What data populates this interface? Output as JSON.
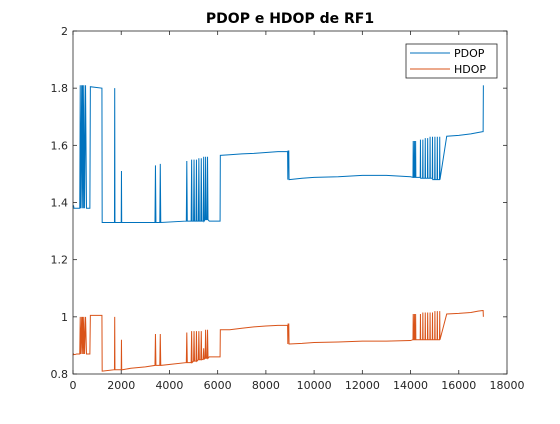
{
  "chart_data": {
    "type": "line",
    "title": "PDOP e HDOP de RF1",
    "xlabel": "",
    "ylabel": "",
    "xlim": [
      0,
      18000
    ],
    "ylim": [
      0.8,
      2
    ],
    "xticks": [
      0,
      2000,
      4000,
      6000,
      8000,
      10000,
      12000,
      14000,
      16000,
      18000
    ],
    "yticks": [
      0.8,
      1,
      1.2,
      1.4,
      1.6,
      1.8,
      2
    ],
    "xtick_labels": [
      "0",
      "2000",
      "4000",
      "6000",
      "8000",
      "10000",
      "12000",
      "14000",
      "16000",
      "18000"
    ],
    "ytick_labels": [
      "0.8",
      "1",
      "1.2",
      "1.4",
      "1.6",
      "1.8",
      "2"
    ],
    "grid": false,
    "legend_position": "top-right",
    "series": [
      {
        "name": "PDOP",
        "color": "#0072BD",
        "x": [
          0,
          20,
          40,
          80,
          150,
          220,
          280,
          300,
          320,
          360,
          380,
          400,
          430,
          450,
          480,
          520,
          560,
          600,
          660,
          700,
          720,
          1200,
          1210,
          1220,
          1720,
          1730,
          1740,
          1960,
          2000,
          2010,
          2020,
          2050,
          2400,
          3000,
          3400,
          3420,
          3440,
          3600,
          3620,
          3640,
          4700,
          4720,
          4740,
          4900,
          4920,
          4940,
          5000,
          5020,
          5040,
          5100,
          5120,
          5140,
          5200,
          5220,
          5240,
          5300,
          5320,
          5340,
          5400,
          5420,
          5440,
          5480,
          5500,
          5520,
          5560,
          5580,
          5600,
          5650,
          6100,
          6110,
          6500,
          7000,
          7500,
          8000,
          8500,
          8900,
          8910,
          8920,
          8950,
          8960,
          8970,
          9500,
          10000,
          11000,
          12000,
          13000,
          14000,
          14100,
          14110,
          14120,
          14150,
          14160,
          14170,
          14200,
          14210,
          14220,
          14400,
          14410,
          14420,
          14500,
          14510,
          14520,
          14600,
          14610,
          14620,
          14700,
          14710,
          14720,
          14800,
          14810,
          14820,
          14900,
          14910,
          14920,
          15000,
          15010,
          15020,
          15100,
          15110,
          15120,
          15200,
          15210,
          15220,
          15500,
          16000,
          16500,
          16800,
          17000,
          17010,
          17020
        ],
        "values": [
          1.385,
          1.39,
          1.38,
          1.38,
          1.38,
          1.38,
          1.38,
          1.81,
          1.38,
          1.81,
          1.38,
          1.81,
          1.38,
          1.81,
          1.38,
          1.81,
          1.38,
          1.38,
          1.38,
          1.38,
          1.805,
          1.8,
          1.33,
          1.33,
          1.33,
          1.8,
          1.33,
          1.33,
          1.33,
          1.51,
          1.33,
          1.33,
          1.33,
          1.33,
          1.33,
          1.53,
          1.33,
          1.33,
          1.535,
          1.33,
          1.335,
          1.545,
          1.335,
          1.335,
          1.55,
          1.335,
          1.335,
          1.55,
          1.335,
          1.335,
          1.55,
          1.335,
          1.335,
          1.555,
          1.335,
          1.335,
          1.555,
          1.335,
          1.335,
          1.56,
          1.335,
          1.34,
          1.56,
          1.34,
          1.34,
          1.56,
          1.34,
          1.335,
          1.335,
          1.565,
          1.567,
          1.57,
          1.572,
          1.575,
          1.578,
          1.578,
          1.48,
          1.58,
          1.58,
          1.48,
          1.48,
          1.485,
          1.488,
          1.49,
          1.495,
          1.495,
          1.49,
          1.488,
          1.615,
          1.488,
          1.488,
          1.615,
          1.488,
          1.488,
          1.615,
          1.488,
          1.488,
          1.62,
          1.485,
          1.485,
          1.62,
          1.485,
          1.485,
          1.625,
          1.485,
          1.485,
          1.625,
          1.485,
          1.485,
          1.63,
          1.485,
          1.485,
          1.63,
          1.48,
          1.48,
          1.63,
          1.48,
          1.48,
          1.63,
          1.48,
          1.48,
          1.63,
          1.48,
          1.632,
          1.635,
          1.64,
          1.645,
          1.648,
          1.648,
          1.81
        ]
      },
      {
        "name": "HDOP",
        "color": "#D95319",
        "x": [
          0,
          20,
          40,
          80,
          150,
          220,
          280,
          300,
          320,
          360,
          380,
          400,
          430,
          450,
          480,
          520,
          560,
          600,
          660,
          700,
          720,
          1200,
          1210,
          1220,
          1720,
          1730,
          1740,
          1960,
          2000,
          2010,
          2020,
          2050,
          2400,
          3000,
          3400,
          3420,
          3440,
          3600,
          3620,
          3640,
          4700,
          4720,
          4740,
          4900,
          4920,
          4940,
          5000,
          5020,
          5040,
          5100,
          5120,
          5140,
          5200,
          5220,
          5240,
          5300,
          5320,
          5340,
          5400,
          5420,
          5440,
          5480,
          5500,
          5520,
          5560,
          5580,
          5600,
          5650,
          6100,
          6110,
          6500,
          7000,
          7500,
          8000,
          8500,
          8900,
          8910,
          8920,
          8950,
          8960,
          8970,
          9500,
          10000,
          11000,
          12000,
          13000,
          14000,
          14100,
          14110,
          14120,
          14150,
          14160,
          14170,
          14200,
          14210,
          14220,
          14400,
          14410,
          14420,
          14500,
          14510,
          14520,
          14600,
          14610,
          14620,
          14700,
          14710,
          14720,
          14800,
          14810,
          14820,
          14900,
          14910,
          14920,
          15000,
          15010,
          15020,
          15100,
          15110,
          15120,
          15200,
          15210,
          15220,
          15500,
          16000,
          16500,
          16800,
          17000,
          17010,
          17020
        ],
        "values": [
          0.865,
          0.87,
          0.868,
          0.868,
          0.87,
          0.87,
          0.87,
          1.0,
          0.87,
          1.0,
          0.87,
          1.0,
          0.87,
          1.0,
          0.87,
          1.0,
          0.87,
          0.87,
          0.87,
          0.87,
          1.005,
          1.005,
          0.81,
          0.81,
          0.815,
          1.0,
          0.815,
          0.815,
          0.815,
          0.92,
          0.815,
          0.815,
          0.82,
          0.825,
          0.83,
          0.94,
          0.83,
          0.83,
          0.94,
          0.83,
          0.84,
          0.945,
          0.84,
          0.84,
          0.95,
          0.84,
          0.845,
          0.95,
          0.845,
          0.845,
          0.95,
          0.845,
          0.85,
          0.95,
          0.85,
          0.85,
          0.95,
          0.85,
          0.852,
          0.89,
          0.852,
          0.855,
          0.955,
          0.855,
          0.855,
          0.955,
          0.855,
          0.86,
          0.86,
          0.955,
          0.955,
          0.96,
          0.965,
          0.968,
          0.97,
          0.97,
          0.905,
          0.975,
          0.975,
          0.905,
          0.905,
          0.907,
          0.91,
          0.912,
          0.915,
          0.915,
          0.917,
          0.92,
          1.01,
          0.92,
          0.92,
          1.01,
          0.92,
          0.92,
          1.01,
          0.92,
          0.92,
          1.01,
          0.92,
          0.92,
          1.015,
          0.92,
          0.92,
          1.015,
          0.92,
          0.92,
          1.015,
          0.92,
          0.92,
          1.015,
          0.92,
          0.92,
          1.015,
          0.92,
          0.92,
          1.02,
          0.92,
          0.92,
          1.02,
          0.92,
          0.92,
          1.02,
          0.92,
          1.01,
          1.012,
          1.015,
          1.02,
          1.022,
          1.022,
          1.0
        ]
      }
    ]
  }
}
